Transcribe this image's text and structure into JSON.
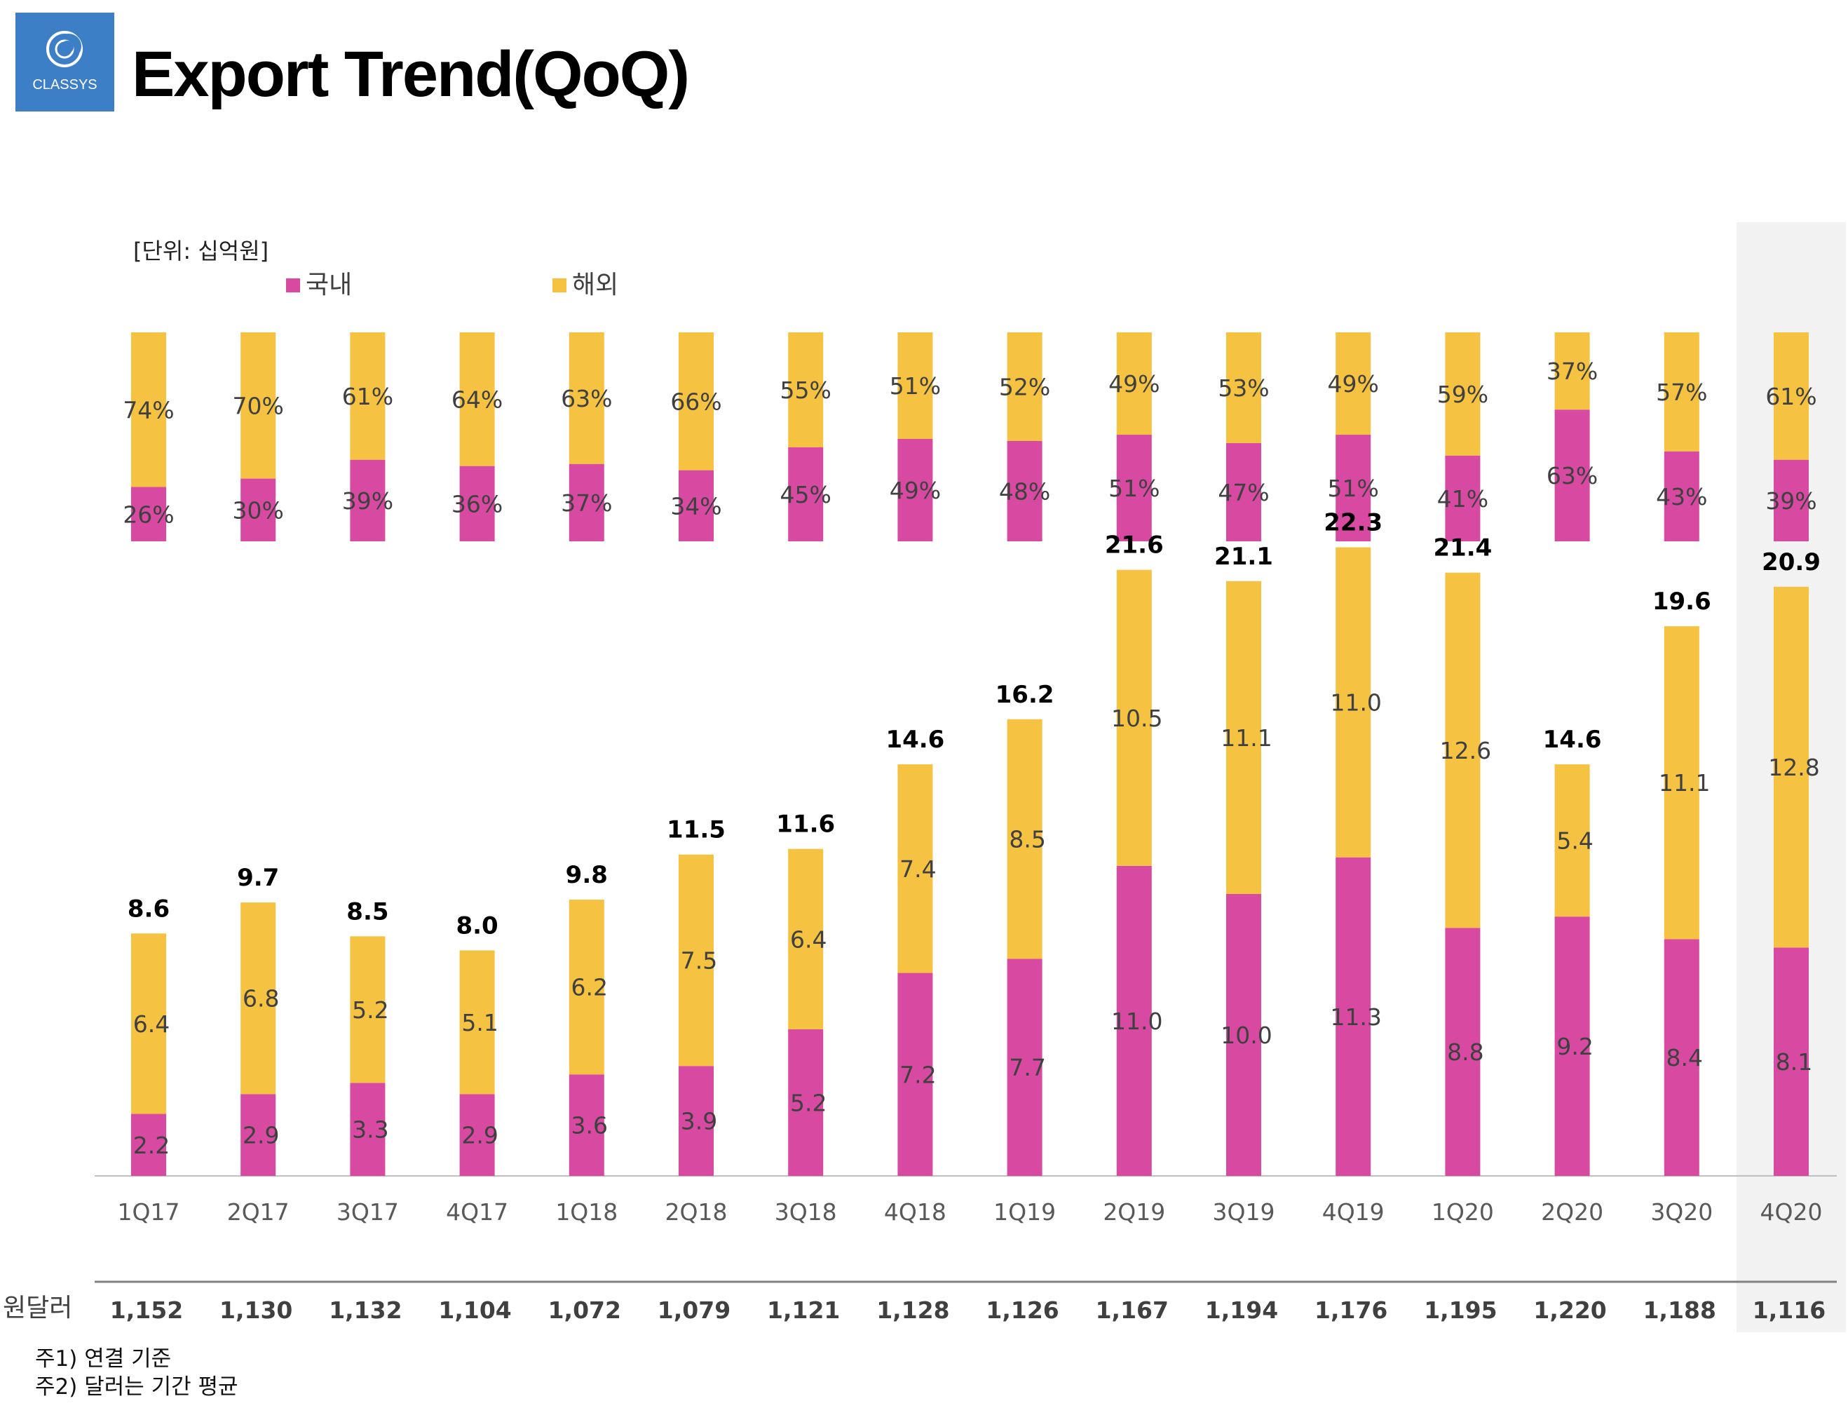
{
  "header": {
    "title": "Export Trend(QoQ)",
    "logo_text": "CLASSYS",
    "logo_color": "#3d7fc7"
  },
  "unit_note": "[단위: 십억원]",
  "rate_label": "원달러",
  "notes": [
    "주1) 연결 기준",
    "주2) 달러는 기간 평균"
  ],
  "colors": {
    "domestic": "#d84aa2",
    "overseas": "#f5c242",
    "highlight": "#f2f2f2"
  },
  "chart_data": [
    {
      "type": "bar",
      "stacked": true,
      "normalized": true,
      "categories": [
        "1Q17",
        "2Q17",
        "3Q17",
        "4Q17",
        "1Q18",
        "2Q18",
        "3Q18",
        "4Q18",
        "1Q19",
        "2Q19",
        "3Q19",
        "4Q19",
        "1Q20",
        "2Q20",
        "3Q20",
        "4Q20"
      ],
      "series": [
        {
          "name": "국내",
          "values": [
            26,
            30,
            39,
            36,
            37,
            34,
            45,
            49,
            48,
            51,
            47,
            51,
            41,
            63,
            43,
            39
          ],
          "labels": [
            "26%",
            "30%",
            "39%",
            "36%",
            "37%",
            "34%",
            "45%",
            "49%",
            "48%",
            "51%",
            "47%",
            "51%",
            "41%",
            "63%",
            "43%",
            "39%"
          ]
        },
        {
          "name": "해외",
          "values": [
            74,
            70,
            61,
            64,
            63,
            66,
            55,
            51,
            52,
            49,
            53,
            49,
            59,
            37,
            57,
            61
          ],
          "labels": [
            "74%",
            "70%",
            "61%",
            "64%",
            "63%",
            "66%",
            "55%",
            "51%",
            "52%",
            "49%",
            "53%",
            "49%",
            "59%",
            "37%",
            "57%",
            "61%"
          ]
        }
      ],
      "legend_position": "top-left"
    },
    {
      "type": "bar",
      "stacked": true,
      "categories": [
        "1Q17",
        "2Q17",
        "3Q17",
        "4Q17",
        "1Q18",
        "2Q18",
        "3Q18",
        "4Q18",
        "1Q19",
        "2Q19",
        "3Q19",
        "4Q19",
        "1Q20",
        "2Q20",
        "3Q20",
        "4Q20"
      ],
      "series": [
        {
          "name": "국내",
          "values": [
            2.2,
            2.9,
            3.3,
            2.9,
            3.6,
            3.9,
            5.2,
            7.2,
            7.7,
            11.0,
            10.0,
            11.3,
            8.8,
            9.2,
            8.4,
            8.1
          ],
          "labels": [
            "2.2",
            "2.9",
            "3.3",
            "2.9",
            "3.6",
            "3.9",
            "5.2",
            "7.2",
            "7.7",
            "11.0",
            "10.0",
            "11.3",
            "8.8",
            "9.2",
            "8.4",
            "8.1"
          ]
        },
        {
          "name": "해외",
          "values": [
            6.4,
            6.8,
            5.2,
            5.1,
            6.2,
            7.5,
            6.4,
            7.4,
            8.5,
            10.5,
            11.1,
            11.0,
            12.6,
            5.4,
            11.1,
            12.8
          ],
          "labels": [
            "6.4",
            "6.8",
            "5.2",
            "5.1",
            "6.2",
            "7.5",
            "6.4",
            "7.4",
            "8.5",
            "10.5",
            "11.1",
            "11.0",
            "12.6",
            "5.4",
            "11.1",
            "12.8"
          ]
        }
      ],
      "totals": [
        8.6,
        9.7,
        8.5,
        8.0,
        9.8,
        11.5,
        11.6,
        14.6,
        16.2,
        21.6,
        21.1,
        22.3,
        21.4,
        14.6,
        19.6,
        20.9
      ],
      "total_labels": [
        "8.6",
        "9.7",
        "8.5",
        "8.0",
        "9.8",
        "11.5",
        "11.6",
        "14.6",
        "16.2",
        "21.6",
        "21.1",
        "22.3",
        "21.4",
        "14.6",
        "19.6",
        "20.9"
      ],
      "exchange_rate": [
        "1,152",
        "1,130",
        "1,132",
        "1,104",
        "1,072",
        "1,079",
        "1,121",
        "1,128",
        "1,126",
        "1,167",
        "1,194",
        "1,176",
        "1,195",
        "1,220",
        "1,188",
        "1,116"
      ],
      "ylim": [
        0,
        25
      ],
      "highlighted_category": "4Q20"
    }
  ]
}
